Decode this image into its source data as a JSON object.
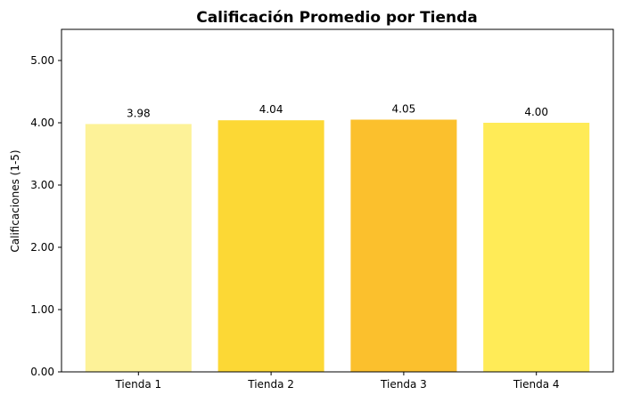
{
  "chart_data": {
    "type": "bar",
    "title": "Calificación Promedio por Tienda",
    "xlabel": "",
    "ylabel": "Calificaciones (1-5)",
    "categories": [
      "Tienda 1",
      "Tienda 2",
      "Tienda 3",
      "Tienda 4"
    ],
    "values": [
      3.98,
      4.04,
      4.05,
      4.0
    ],
    "value_labels": [
      "3.98",
      "4.04",
      "4.05",
      "4.00"
    ],
    "colors": [
      "#FDF298",
      "#FCD835",
      "#FBC02D",
      "#FFEB57"
    ],
    "ylim": [
      0,
      5.5
    ],
    "yticks": [
      0,
      1,
      2,
      3,
      4,
      5
    ],
    "ytick_labels": [
      "0.00",
      "1.00",
      "2.00",
      "3.00",
      "4.00",
      "5.00"
    ],
    "grid": false,
    "legend": "none"
  }
}
